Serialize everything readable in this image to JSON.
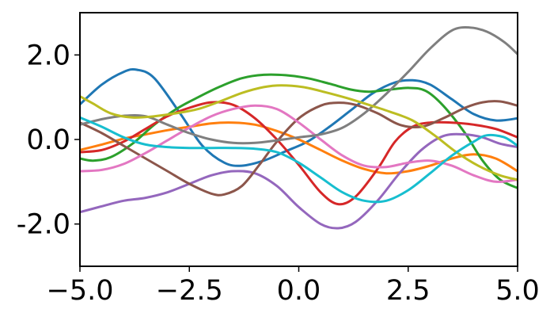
{
  "chart_data": {
    "type": "line",
    "title": "",
    "xlabel": "",
    "ylabel": "",
    "xlim": [
      -5.0,
      5.0
    ],
    "ylim": [
      -3.0,
      3.0
    ],
    "grid": false,
    "legend": "none",
    "x_ticks": [
      {
        "value": -5.0,
        "label": "−5.0"
      },
      {
        "value": -2.5,
        "label": "−2.5"
      },
      {
        "value": 0.0,
        "label": "0.0"
      },
      {
        "value": 2.5,
        "label": "2.5"
      },
      {
        "value": 5.0,
        "label": "5.0"
      }
    ],
    "y_ticks": [
      {
        "value": 2.0,
        "label": "2.0"
      },
      {
        "value": 0.0,
        "label": "0.0"
      },
      {
        "value": -2.0,
        "label": "-2.0"
      }
    ],
    "series": [
      {
        "color": "#1f77b4",
        "points": [
          [
            -5.0,
            0.83
          ],
          [
            -4.5,
            1.3
          ],
          [
            -4.0,
            1.6
          ],
          [
            -3.7,
            1.65
          ],
          [
            -3.3,
            1.45
          ],
          [
            -2.7,
            0.6
          ],
          [
            -2.2,
            -0.15
          ],
          [
            -1.7,
            -0.55
          ],
          [
            -1.3,
            -0.62
          ],
          [
            -0.8,
            -0.5
          ],
          [
            -0.3,
            -0.28
          ],
          [
            0.2,
            -0.05
          ],
          [
            0.7,
            0.3
          ],
          [
            1.2,
            0.7
          ],
          [
            1.7,
            1.1
          ],
          [
            2.2,
            1.35
          ],
          [
            2.6,
            1.4
          ],
          [
            3.0,
            1.3
          ],
          [
            3.5,
            0.95
          ],
          [
            4.0,
            0.6
          ],
          [
            4.5,
            0.45
          ],
          [
            5.0,
            0.5
          ]
        ]
      },
      {
        "color": "#ff7f0e",
        "points": [
          [
            -5.0,
            -0.25
          ],
          [
            -4.5,
            -0.12
          ],
          [
            -4.0,
            0.02
          ],
          [
            -3.5,
            0.12
          ],
          [
            -3.0,
            0.22
          ],
          [
            -2.5,
            0.3
          ],
          [
            -2.0,
            0.38
          ],
          [
            -1.5,
            0.4
          ],
          [
            -1.0,
            0.35
          ],
          [
            -0.5,
            0.2
          ],
          [
            0.0,
            0.0
          ],
          [
            0.5,
            -0.25
          ],
          [
            1.0,
            -0.5
          ],
          [
            1.5,
            -0.7
          ],
          [
            2.0,
            -0.8
          ],
          [
            2.5,
            -0.75
          ],
          [
            3.0,
            -0.62
          ],
          [
            3.5,
            -0.45
          ],
          [
            4.0,
            -0.35
          ],
          [
            4.5,
            -0.45
          ],
          [
            5.0,
            -0.75
          ]
        ]
      },
      {
        "color": "#2ca02c",
        "points": [
          [
            -5.0,
            -0.45
          ],
          [
            -4.7,
            -0.5
          ],
          [
            -4.3,
            -0.42
          ],
          [
            -3.8,
            -0.1
          ],
          [
            -3.3,
            0.35
          ],
          [
            -2.8,
            0.72
          ],
          [
            -2.3,
            1.0
          ],
          [
            -1.8,
            1.25
          ],
          [
            -1.3,
            1.45
          ],
          [
            -0.8,
            1.53
          ],
          [
            -0.3,
            1.52
          ],
          [
            0.2,
            1.45
          ],
          [
            0.7,
            1.32
          ],
          [
            1.2,
            1.18
          ],
          [
            1.6,
            1.13
          ],
          [
            2.0,
            1.17
          ],
          [
            2.5,
            1.22
          ],
          [
            2.9,
            1.15
          ],
          [
            3.3,
            0.8
          ],
          [
            3.8,
            0.15
          ],
          [
            4.2,
            -0.5
          ],
          [
            4.6,
            -0.95
          ],
          [
            5.0,
            -1.15
          ]
        ]
      },
      {
        "color": "#d62728",
        "points": [
          [
            -5.0,
            -0.3
          ],
          [
            -4.5,
            -0.25
          ],
          [
            -4.0,
            -0.05
          ],
          [
            -3.5,
            0.25
          ],
          [
            -3.0,
            0.55
          ],
          [
            -2.5,
            0.75
          ],
          [
            -2.0,
            0.88
          ],
          [
            -1.5,
            0.82
          ],
          [
            -1.0,
            0.5
          ],
          [
            -0.5,
            0.0
          ],
          [
            0.0,
            -0.6
          ],
          [
            0.5,
            -1.25
          ],
          [
            0.9,
            -1.53
          ],
          [
            1.3,
            -1.35
          ],
          [
            1.8,
            -0.7
          ],
          [
            2.2,
            -0.05
          ],
          [
            2.6,
            0.3
          ],
          [
            3.0,
            0.4
          ],
          [
            3.5,
            0.4
          ],
          [
            4.0,
            0.35
          ],
          [
            4.5,
            0.25
          ],
          [
            5.0,
            0.05
          ]
        ]
      },
      {
        "color": "#9467bd",
        "points": [
          [
            -5.0,
            -1.72
          ],
          [
            -4.5,
            -1.58
          ],
          [
            -4.0,
            -1.45
          ],
          [
            -3.5,
            -1.38
          ],
          [
            -3.0,
            -1.25
          ],
          [
            -2.5,
            -1.05
          ],
          [
            -2.0,
            -0.85
          ],
          [
            -1.5,
            -0.75
          ],
          [
            -1.0,
            -0.8
          ],
          [
            -0.5,
            -1.1
          ],
          [
            0.0,
            -1.6
          ],
          [
            0.5,
            -2.0
          ],
          [
            0.9,
            -2.1
          ],
          [
            1.3,
            -1.95
          ],
          [
            1.8,
            -1.45
          ],
          [
            2.3,
            -0.8
          ],
          [
            2.8,
            -0.25
          ],
          [
            3.3,
            0.08
          ],
          [
            3.8,
            0.12
          ],
          [
            4.2,
            0.05
          ],
          [
            4.6,
            -0.1
          ],
          [
            5.0,
            -0.18
          ]
        ]
      },
      {
        "color": "#8c564b",
        "points": [
          [
            -5.0,
            0.4
          ],
          [
            -4.5,
            0.15
          ],
          [
            -4.0,
            -0.15
          ],
          [
            -3.5,
            -0.45
          ],
          [
            -3.0,
            -0.75
          ],
          [
            -2.5,
            -1.05
          ],
          [
            -2.0,
            -1.28
          ],
          [
            -1.7,
            -1.3
          ],
          [
            -1.3,
            -1.1
          ],
          [
            -0.9,
            -0.6
          ],
          [
            -0.5,
            -0.05
          ],
          [
            0.0,
            0.5
          ],
          [
            0.5,
            0.8
          ],
          [
            0.9,
            0.87
          ],
          [
            1.3,
            0.82
          ],
          [
            1.8,
            0.62
          ],
          [
            2.3,
            0.35
          ],
          [
            2.8,
            0.3
          ],
          [
            3.3,
            0.5
          ],
          [
            3.8,
            0.75
          ],
          [
            4.2,
            0.88
          ],
          [
            4.6,
            0.9
          ],
          [
            5.0,
            0.8
          ]
        ]
      },
      {
        "color": "#e377c2",
        "points": [
          [
            -5.0,
            -0.75
          ],
          [
            -4.5,
            -0.72
          ],
          [
            -4.0,
            -0.58
          ],
          [
            -3.5,
            -0.32
          ],
          [
            -3.0,
            -0.02
          ],
          [
            -2.5,
            0.28
          ],
          [
            -2.0,
            0.55
          ],
          [
            -1.5,
            0.72
          ],
          [
            -1.0,
            0.8
          ],
          [
            -0.5,
            0.72
          ],
          [
            0.0,
            0.4
          ],
          [
            0.5,
            0.0
          ],
          [
            1.0,
            -0.38
          ],
          [
            1.5,
            -0.62
          ],
          [
            2.0,
            -0.65
          ],
          [
            2.5,
            -0.55
          ],
          [
            3.0,
            -0.5
          ],
          [
            3.5,
            -0.62
          ],
          [
            4.0,
            -0.85
          ],
          [
            4.5,
            -1.0
          ],
          [
            5.0,
            -0.95
          ]
        ]
      },
      {
        "color": "#7f7f7f",
        "points": [
          [
            -5.0,
            0.35
          ],
          [
            -4.5,
            0.48
          ],
          [
            -4.0,
            0.56
          ],
          [
            -3.5,
            0.55
          ],
          [
            -3.0,
            0.35
          ],
          [
            -2.5,
            0.15
          ],
          [
            -2.0,
            0.0
          ],
          [
            -1.5,
            -0.08
          ],
          [
            -1.0,
            -0.08
          ],
          [
            -0.5,
            -0.02
          ],
          [
            0.0,
            0.05
          ],
          [
            0.5,
            0.12
          ],
          [
            1.0,
            0.28
          ],
          [
            1.5,
            0.62
          ],
          [
            2.0,
            1.08
          ],
          [
            2.5,
            1.6
          ],
          [
            3.0,
            2.15
          ],
          [
            3.5,
            2.58
          ],
          [
            3.9,
            2.65
          ],
          [
            4.3,
            2.55
          ],
          [
            4.7,
            2.3
          ],
          [
            5.0,
            2.02
          ]
        ]
      },
      {
        "color": "#bcbd22",
        "points": [
          [
            -5.0,
            1.02
          ],
          [
            -4.7,
            0.85
          ],
          [
            -4.3,
            0.62
          ],
          [
            -3.8,
            0.52
          ],
          [
            -3.3,
            0.55
          ],
          [
            -2.8,
            0.62
          ],
          [
            -2.3,
            0.72
          ],
          [
            -1.8,
            0.9
          ],
          [
            -1.3,
            1.1
          ],
          [
            -0.8,
            1.24
          ],
          [
            -0.4,
            1.28
          ],
          [
            0.1,
            1.24
          ],
          [
            0.6,
            1.12
          ],
          [
            1.1,
            0.98
          ],
          [
            1.6,
            0.82
          ],
          [
            2.1,
            0.65
          ],
          [
            2.6,
            0.45
          ],
          [
            3.1,
            0.1
          ],
          [
            3.6,
            -0.3
          ],
          [
            4.1,
            -0.62
          ],
          [
            4.6,
            -0.85
          ],
          [
            5.0,
            -0.95
          ]
        ]
      },
      {
        "color": "#17becf",
        "points": [
          [
            -5.0,
            0.52
          ],
          [
            -4.5,
            0.3
          ],
          [
            -4.0,
            0.05
          ],
          [
            -3.5,
            -0.12
          ],
          [
            -3.0,
            -0.18
          ],
          [
            -2.5,
            -0.2
          ],
          [
            -2.0,
            -0.2
          ],
          [
            -1.5,
            -0.2
          ],
          [
            -1.0,
            -0.22
          ],
          [
            -0.5,
            -0.3
          ],
          [
            0.0,
            -0.55
          ],
          [
            0.5,
            -0.9
          ],
          [
            1.0,
            -1.25
          ],
          [
            1.5,
            -1.45
          ],
          [
            2.0,
            -1.45
          ],
          [
            2.5,
            -1.2
          ],
          [
            3.0,
            -0.8
          ],
          [
            3.5,
            -0.38
          ],
          [
            4.0,
            -0.05
          ],
          [
            4.3,
            0.1
          ],
          [
            4.7,
            0.05
          ],
          [
            5.0,
            -0.15
          ]
        ]
      }
    ]
  }
}
